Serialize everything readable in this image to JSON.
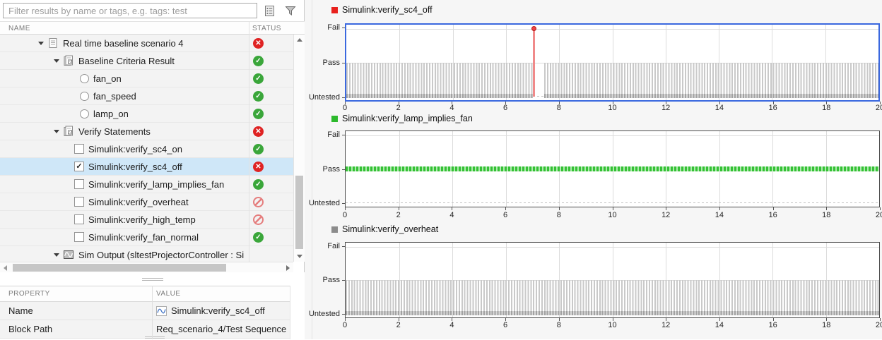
{
  "filter": {
    "placeholder": "Filter results by name or tags, e.g. tags: test"
  },
  "toolbar": {
    "icons": [
      "results-report-icon",
      "filter-funnel-icon"
    ]
  },
  "tree": {
    "header": {
      "name_label": "NAME",
      "status_label": "STATUS"
    },
    "rows": [
      {
        "label": "Real time baseline scenario 4",
        "indent": 1,
        "expander": true,
        "icon": "document",
        "status": "fail",
        "selected": false
      },
      {
        "label": "Baseline Criteria Result",
        "indent": 2,
        "expander": true,
        "icon": "report",
        "status": "pass",
        "selected": false
      },
      {
        "label": "fan_on",
        "indent": 3,
        "control": "radio",
        "status": "pass",
        "selected": false
      },
      {
        "label": "fan_speed",
        "indent": 3,
        "control": "radio",
        "status": "pass",
        "selected": false
      },
      {
        "label": "lamp_on",
        "indent": 3,
        "control": "radio",
        "status": "pass",
        "selected": false
      },
      {
        "label": "Verify Statements",
        "indent": 2,
        "expander": true,
        "icon": "report",
        "status": "fail",
        "selected": false
      },
      {
        "label": "Simulink:verify_sc4_on",
        "indent": 3,
        "control": "checkbox",
        "checked": false,
        "status": "pass",
        "selected": false
      },
      {
        "label": "Simulink:verify_sc4_off",
        "indent": 3,
        "control": "checkbox",
        "checked": true,
        "status": "fail",
        "selected": true
      },
      {
        "label": "Simulink:verify_lamp_implies_fan",
        "indent": 3,
        "control": "checkbox",
        "checked": false,
        "status": "pass",
        "selected": false
      },
      {
        "label": "Simulink:verify_overheat",
        "indent": 3,
        "control": "checkbox",
        "checked": false,
        "status": "untested",
        "selected": false
      },
      {
        "label": "Simulink:verify_high_temp",
        "indent": 3,
        "control": "checkbox",
        "checked": false,
        "status": "untested",
        "selected": false
      },
      {
        "label": "Simulink:verify_fan_normal",
        "indent": 3,
        "control": "checkbox",
        "checked": false,
        "status": "pass",
        "selected": false
      },
      {
        "label": "Sim Output (sltestProjectorController : Si",
        "indent": 2,
        "expander": true,
        "icon": "signal",
        "status": null,
        "selected": false
      }
    ]
  },
  "properties": {
    "header": {
      "property_label": "PROPERTY",
      "value_label": "VALUE"
    },
    "rows": [
      {
        "property": "Name",
        "value": "Simulink:verify_sc4_off",
        "value_icon": "signal-wave-icon"
      },
      {
        "property": "Block Path",
        "value": "Req_scenario_4/Test Sequence",
        "value_icon": null
      }
    ]
  },
  "status_colors": {
    "pass": "#3aa63a",
    "fail": "#df2323",
    "untested": "#e57d7d",
    "selected_row": "#cfe7f8",
    "selected_plot_border": "#3a68df"
  },
  "chart_data": [
    {
      "type": "stem",
      "title": "Simulink:verify_sc4_off",
      "legend_color": "#e8211d",
      "selected": true,
      "x_range": [
        0,
        20
      ],
      "x_ticks": [
        0,
        2,
        4,
        6,
        8,
        10,
        12,
        14,
        16,
        18,
        20
      ],
      "y_levels": [
        "Fail",
        "Pass",
        "Untested"
      ],
      "grid": true,
      "legend_position": "top-left",
      "segments": [
        {
          "value": "Pass",
          "from": 0,
          "to": 7.0,
          "render": "comb"
        },
        {
          "value": "Fail",
          "at": 7.05,
          "render": "stem"
        },
        {
          "value": "Untested",
          "from": 7.05,
          "to": 7.45,
          "render": "gap"
        },
        {
          "value": "Pass",
          "from": 7.45,
          "to": 20,
          "render": "comb"
        }
      ]
    },
    {
      "type": "line",
      "title": "Simulink:verify_lamp_implies_fan",
      "legend_color": "#2db92d",
      "selected": false,
      "x_range": [
        0,
        20
      ],
      "x_ticks": [
        0,
        2,
        4,
        6,
        8,
        10,
        12,
        14,
        16,
        18,
        20
      ],
      "y_levels": [
        "Fail",
        "Pass",
        "Untested"
      ],
      "grid": true,
      "legend_position": "top-left",
      "segments": [
        {
          "value": "Pass",
          "from": 0,
          "to": 20,
          "render": "line"
        }
      ]
    },
    {
      "type": "stem",
      "title": "Simulink:verify_overheat",
      "legend_color": "#8c8c8c",
      "selected": false,
      "x_range": [
        0,
        20
      ],
      "x_ticks": [
        0,
        2,
        4,
        6,
        8,
        10,
        12,
        14,
        16,
        18,
        20
      ],
      "y_levels": [
        "Fail",
        "Pass",
        "Untested"
      ],
      "grid": true,
      "legend_position": "top-left",
      "segments": [
        {
          "value": "Untested",
          "from": 0,
          "to": 20,
          "render": "comb"
        }
      ]
    }
  ]
}
